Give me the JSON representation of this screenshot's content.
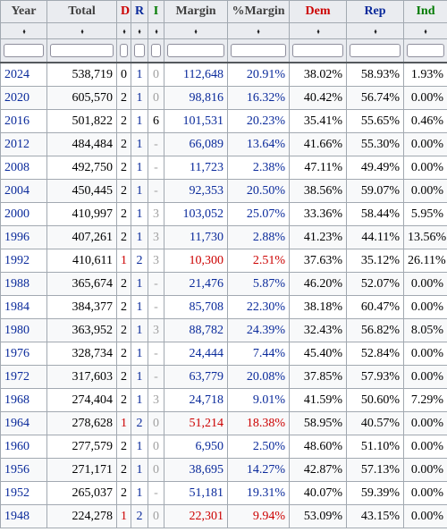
{
  "headers": {
    "year": "Year",
    "total": "Total",
    "d": "D",
    "r": "R",
    "i": "I",
    "margin": "Margin",
    "pct_margin": "%Margin",
    "dem": "Dem",
    "rep": "Rep",
    "ind": "Ind"
  },
  "sort_icon": "sort-arrows-icon",
  "colors": {
    "dem": "#cc0000",
    "rep": "#0a2a9b",
    "ind": "#007a00",
    "blue_text": "#0a2a9b"
  },
  "rows": [
    {
      "year": "2024",
      "total": "538,719",
      "d": "0",
      "r": "1",
      "i": "0",
      "margin": "112,648",
      "pct": "20.91%",
      "dem": "38.02%",
      "rep": "58.93%",
      "ind": "1.93%",
      "winner": "rep"
    },
    {
      "year": "2020",
      "total": "605,570",
      "d": "2",
      "r": "1",
      "i": "0",
      "margin": "98,816",
      "pct": "16.32%",
      "dem": "40.42%",
      "rep": "56.74%",
      "ind": "0.00%",
      "winner": "rep"
    },
    {
      "year": "2016",
      "total": "501,822",
      "d": "2",
      "r": "1",
      "i": "6",
      "margin": "101,531",
      "pct": "20.23%",
      "dem": "35.41%",
      "rep": "55.65%",
      "ind": "0.46%",
      "winner": "rep"
    },
    {
      "year": "2012",
      "total": "484,484",
      "d": "2",
      "r": "1",
      "i": "-",
      "margin": "66,089",
      "pct": "13.64%",
      "dem": "41.66%",
      "rep": "55.30%",
      "ind": "0.00%",
      "winner": "rep"
    },
    {
      "year": "2008",
      "total": "492,750",
      "d": "2",
      "r": "1",
      "i": "-",
      "margin": "11,723",
      "pct": "2.38%",
      "dem": "47.11%",
      "rep": "49.49%",
      "ind": "0.00%",
      "winner": "rep"
    },
    {
      "year": "2004",
      "total": "450,445",
      "d": "2",
      "r": "1",
      "i": "-",
      "margin": "92,353",
      "pct": "20.50%",
      "dem": "38.56%",
      "rep": "59.07%",
      "ind": "0.00%",
      "winner": "rep"
    },
    {
      "year": "2000",
      "total": "410,997",
      "d": "2",
      "r": "1",
      "i": "3",
      "margin": "103,052",
      "pct": "25.07%",
      "dem": "33.36%",
      "rep": "58.44%",
      "ind": "5.95%",
      "winner": "rep"
    },
    {
      "year": "1996",
      "total": "407,261",
      "d": "2",
      "r": "1",
      "i": "3",
      "margin": "11,730",
      "pct": "2.88%",
      "dem": "41.23%",
      "rep": "44.11%",
      "ind": "13.56%",
      "winner": "rep"
    },
    {
      "year": "1992",
      "total": "410,611",
      "d": "1",
      "r": "2",
      "i": "3",
      "margin": "10,300",
      "pct": "2.51%",
      "dem": "37.63%",
      "rep": "35.12%",
      "ind": "26.11%",
      "winner": "dem"
    },
    {
      "year": "1988",
      "total": "365,674",
      "d": "2",
      "r": "1",
      "i": "-",
      "margin": "21,476",
      "pct": "5.87%",
      "dem": "46.20%",
      "rep": "52.07%",
      "ind": "0.00%",
      "winner": "rep"
    },
    {
      "year": "1984",
      "total": "384,377",
      "d": "2",
      "r": "1",
      "i": "-",
      "margin": "85,708",
      "pct": "22.30%",
      "dem": "38.18%",
      "rep": "60.47%",
      "ind": "0.00%",
      "winner": "rep"
    },
    {
      "year": "1980",
      "total": "363,952",
      "d": "2",
      "r": "1",
      "i": "3",
      "margin": "88,782",
      "pct": "24.39%",
      "dem": "32.43%",
      "rep": "56.82%",
      "ind": "8.05%",
      "winner": "rep"
    },
    {
      "year": "1976",
      "total": "328,734",
      "d": "2",
      "r": "1",
      "i": "-",
      "margin": "24,444",
      "pct": "7.44%",
      "dem": "45.40%",
      "rep": "52.84%",
      "ind": "0.00%",
      "winner": "rep"
    },
    {
      "year": "1972",
      "total": "317,603",
      "d": "2",
      "r": "1",
      "i": "-",
      "margin": "63,779",
      "pct": "20.08%",
      "dem": "37.85%",
      "rep": "57.93%",
      "ind": "0.00%",
      "winner": "rep"
    },
    {
      "year": "1968",
      "total": "274,404",
      "d": "2",
      "r": "1",
      "i": "3",
      "margin": "24,718",
      "pct": "9.01%",
      "dem": "41.59%",
      "rep": "50.60%",
      "ind": "7.29%",
      "winner": "rep"
    },
    {
      "year": "1964",
      "total": "278,628",
      "d": "1",
      "r": "2",
      "i": "0",
      "margin": "51,214",
      "pct": "18.38%",
      "dem": "58.95%",
      "rep": "40.57%",
      "ind": "0.00%",
      "winner": "dem"
    },
    {
      "year": "1960",
      "total": "277,579",
      "d": "2",
      "r": "1",
      "i": "0",
      "margin": "6,950",
      "pct": "2.50%",
      "dem": "48.60%",
      "rep": "51.10%",
      "ind": "0.00%",
      "winner": "rep"
    },
    {
      "year": "1956",
      "total": "271,171",
      "d": "2",
      "r": "1",
      "i": "0",
      "margin": "38,695",
      "pct": "14.27%",
      "dem": "42.87%",
      "rep": "57.13%",
      "ind": "0.00%",
      "winner": "rep"
    },
    {
      "year": "1952",
      "total": "265,037",
      "d": "2",
      "r": "1",
      "i": "-",
      "margin": "51,181",
      "pct": "19.31%",
      "dem": "40.07%",
      "rep": "59.39%",
      "ind": "0.00%",
      "winner": "rep"
    },
    {
      "year": "1948",
      "total": "224,278",
      "d": "1",
      "r": "2",
      "i": "0",
      "margin": "22,301",
      "pct": "9.94%",
      "dem": "53.09%",
      "rep": "43.15%",
      "ind": "0.00%",
      "winner": "dem"
    }
  ]
}
